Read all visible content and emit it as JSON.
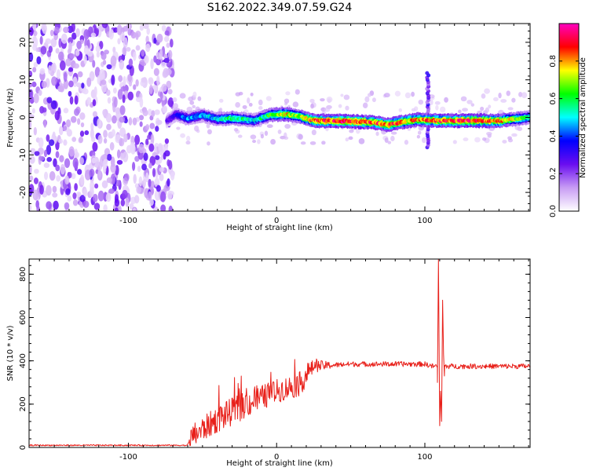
{
  "title": "S162.2022.349.07.59.G24",
  "chart_data": [
    {
      "type": "heatmap",
      "xlabel": "Height of straight line (km)",
      "ylabel": "Frequency (Hz)",
      "xlim": [
        -167,
        171
      ],
      "ylim": [
        -25,
        25
      ],
      "xticks": [
        -100,
        0,
        100
      ],
      "xtick_labels": [
        "-100",
        "0",
        "100"
      ],
      "yticks": [
        -20,
        -10,
        0,
        10,
        20
      ],
      "ytick_labels": [
        "-20",
        "-10",
        "0",
        "10",
        "20"
      ],
      "colorbar": {
        "label": "Normalized spectral amplitude",
        "range": [
          0,
          1
        ],
        "ticks": [
          0.0,
          0.2,
          0.4,
          0.6,
          0.8
        ],
        "tick_labels": [
          "0.0",
          "0.2",
          "0.4",
          "0.6",
          "0.8"
        ],
        "colormap": [
          "#ffffff",
          "#c89cf4",
          "#6a0df0",
          "#0000ff",
          "#00ffff",
          "#00ff00",
          "#ffff00",
          "#ff0000",
          "#ff00c0"
        ]
      },
      "noise_region": {
        "x_range": [
          -167,
          -70
        ],
        "y_range": [
          -25,
          25
        ],
        "amplitude_range": [
          0.05,
          0.3
        ]
      },
      "ridge": [
        {
          "x": -74,
          "y": -1.0,
          "amp": 0.25
        },
        {
          "x": -68,
          "y": 0.8,
          "amp": 0.35
        },
        {
          "x": -60,
          "y": -0.3,
          "amp": 0.45
        },
        {
          "x": -50,
          "y": 0.6,
          "amp": 0.45
        },
        {
          "x": -40,
          "y": -0.5,
          "amp": 0.5
        },
        {
          "x": -30,
          "y": -0.2,
          "amp": 0.6
        },
        {
          "x": -15,
          "y": -0.8,
          "amp": 0.5
        },
        {
          "x": -5,
          "y": 0.6,
          "amp": 0.6
        },
        {
          "x": 5,
          "y": 0.9,
          "amp": 0.75
        },
        {
          "x": 15,
          "y": 0.3,
          "amp": 0.65
        },
        {
          "x": 25,
          "y": -0.9,
          "amp": 0.85
        },
        {
          "x": 45,
          "y": -1.0,
          "amp": 0.9
        },
        {
          "x": 65,
          "y": -1.3,
          "amp": 0.85
        },
        {
          "x": 75,
          "y": -2.0,
          "amp": 0.85
        },
        {
          "x": 85,
          "y": -1.2,
          "amp": 0.8
        },
        {
          "x": 95,
          "y": -0.6,
          "amp": 0.8
        },
        {
          "x": 110,
          "y": -0.9,
          "amp": 0.85
        },
        {
          "x": 130,
          "y": -0.9,
          "amp": 0.9
        },
        {
          "x": 150,
          "y": -0.9,
          "amp": 0.8
        },
        {
          "x": 171,
          "y": 0.0,
          "amp": 0.55
        }
      ],
      "spike": {
        "x": 102,
        "y_range": [
          -8,
          12
        ],
        "amplitude": 0.3
      }
    },
    {
      "type": "line",
      "xlabel": "Height of straight line (km)",
      "ylabel": "SNR (10 * v/v)",
      "xlim": [
        -167,
        171
      ],
      "ylim": [
        0,
        870
      ],
      "xticks": [
        -100,
        0,
        100
      ],
      "xtick_labels": [
        "-100",
        "0",
        "100"
      ],
      "yticks": [
        0,
        200,
        400,
        600,
        800
      ],
      "ytick_labels": [
        "0",
        "200",
        "400",
        "600",
        "800"
      ],
      "line_color": "#e8201a",
      "trend": {
        "x": [
          -167,
          -60,
          -57,
          -40,
          -20,
          0,
          15,
          25,
          50,
          100,
          105,
          171
        ],
        "y": [
          10,
          10,
          50,
          130,
          200,
          260,
          290,
          375,
          385,
          385,
          375,
          375
        ]
      },
      "noise_amplitude": {
        "x": [
          -167,
          -60,
          -57,
          -30,
          0,
          20,
          25,
          40,
          100,
          171
        ],
        "y": [
          3,
          3,
          55,
          65,
          55,
          55,
          30,
          12,
          12,
          12
        ]
      },
      "feature": [
        {
          "x": 108.5,
          "y": 300
        },
        {
          "x": 109.2,
          "y": 870
        },
        {
          "x": 110.0,
          "y": 100
        },
        {
          "x": 110.6,
          "y": 260
        },
        {
          "x": 111.3,
          "y": 120
        },
        {
          "x": 112.0,
          "y": 680
        },
        {
          "x": 112.6,
          "y": 430
        },
        {
          "x": 113.2,
          "y": 330
        }
      ]
    }
  ]
}
